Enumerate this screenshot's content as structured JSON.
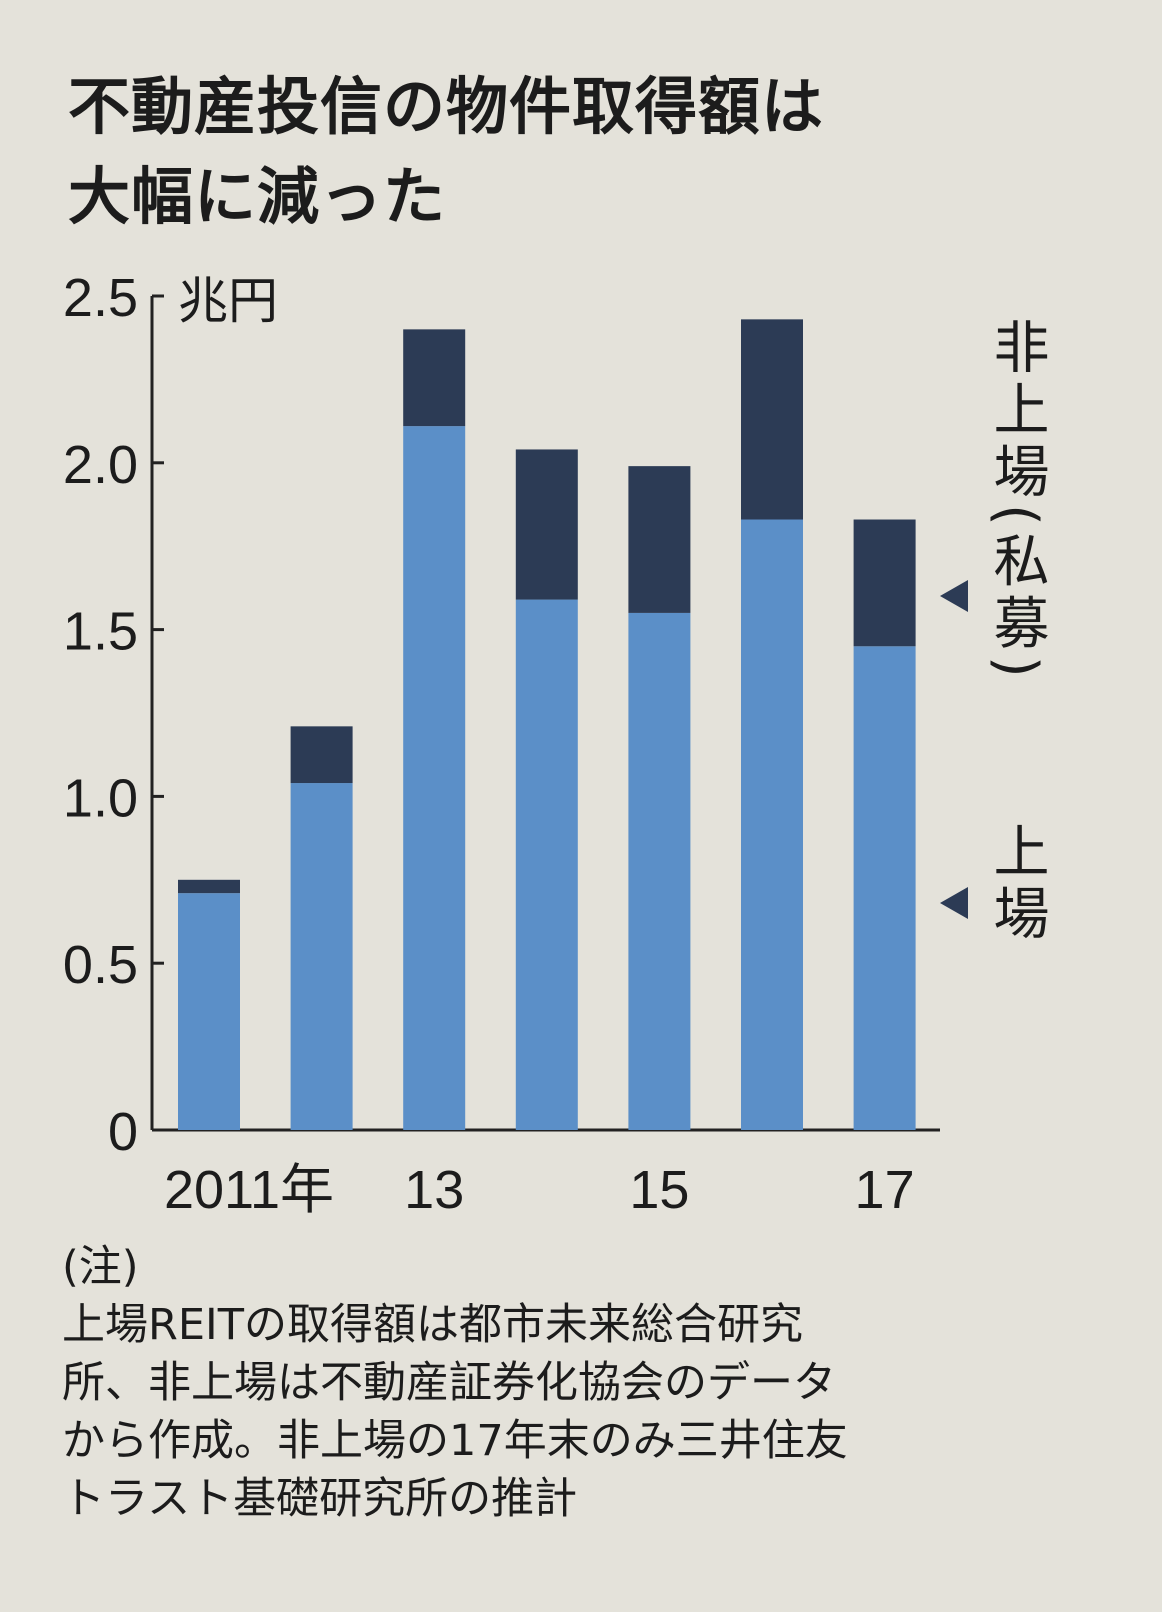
{
  "title_lines": [
    "不動産投信の物件取得額は",
    "大幅に減った"
  ],
  "chart_data": {
    "type": "bar",
    "stacked": true,
    "title": "不動産投信の物件取得額は大幅に減った",
    "unit": "兆円",
    "categories": [
      "2011",
      "2012",
      "2013",
      "2014",
      "2015",
      "2016",
      "2017"
    ],
    "x_tick_labels": [
      {
        "category": "2011",
        "label": "2011年"
      },
      {
        "category": "2013",
        "label": "13"
      },
      {
        "category": "2015",
        "label": "15"
      },
      {
        "category": "2017",
        "label": "17"
      }
    ],
    "y_ticks": [
      "0",
      "0.5",
      "1.0",
      "1.5",
      "2.0",
      "2.5"
    ],
    "ylim": [
      0,
      2.5
    ],
    "grid": false,
    "legend_placement": "right",
    "series": [
      {
        "name": "上場",
        "color": "#5b8fc8",
        "values": [
          0.71,
          1.04,
          2.11,
          1.59,
          1.55,
          1.83,
          1.45
        ]
      },
      {
        "name": "非上場(私募)",
        "color": "#2c3b55",
        "values": [
          0.04,
          0.17,
          0.29,
          0.45,
          0.44,
          0.6,
          0.38
        ]
      }
    ],
    "legend_labels": {
      "private": "非上場(私募)",
      "listed": "上場"
    }
  },
  "note": {
    "heading": "(注)",
    "lines": [
      "上場REITの取得額は都市未来総合研究",
      "所、非上場は不動産証券化協会のデータ",
      "から作成。非上場の17年末のみ三井住友",
      "トラスト基礎研究所の推計"
    ]
  }
}
